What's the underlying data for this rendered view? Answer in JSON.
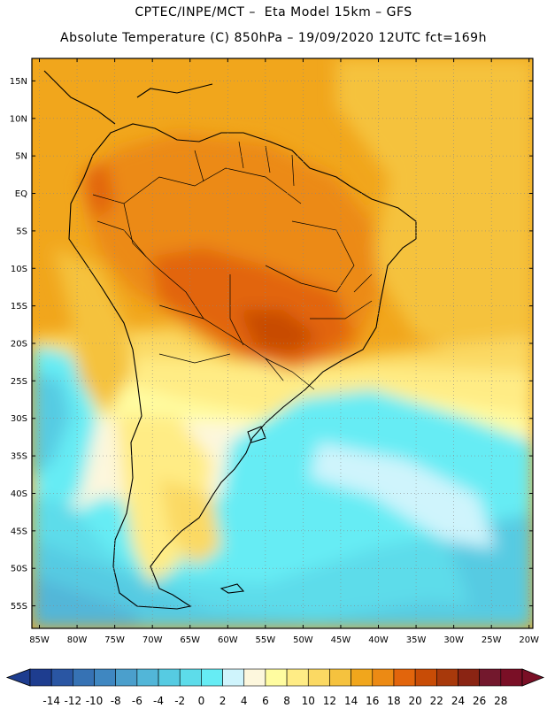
{
  "header": {
    "line1": "CPTEC/INPE/MCT –  Eta Model 15km – GFS",
    "line2": "Absolute Temperature (C) 850hPa – 19/09/2020 12UTC fct=169h"
  },
  "map": {
    "lat_range": [
      -58,
      18
    ],
    "lon_range": [
      -86,
      -19.5
    ],
    "lat_labels": [
      "15N",
      "10N",
      "5N",
      "EQ",
      "5S",
      "10S",
      "15S",
      "20S",
      "25S",
      "30S",
      "35S",
      "40S",
      "45S",
      "50S",
      "55S"
    ],
    "lon_labels": [
      "85W",
      "80W",
      "75W",
      "70W",
      "65W",
      "60W",
      "55W",
      "50W",
      "45W",
      "40W",
      "35W",
      "30W",
      "25W",
      "20W"
    ],
    "gridlines": true
  },
  "colorbar": {
    "labels": [
      "-14",
      "-12",
      "-10",
      "-8",
      "-6",
      "-4",
      "-2",
      "0",
      "2",
      "4",
      "6",
      "8",
      "10",
      "12",
      "14",
      "16",
      "18",
      "20",
      "22",
      "24",
      "26",
      "28"
    ],
    "colors": [
      "#1e3d8f",
      "#2a56a3",
      "#3672b4",
      "#3f87c1",
      "#4b9fcc",
      "#52b6d8",
      "#56cbe2",
      "#5ddcea",
      "#66ecf4",
      "#cff4fc",
      "#fdf7dd",
      "#fffca0",
      "#ffec85",
      "#fbd963",
      "#f5c23e",
      "#f1a61c",
      "#ec8a14",
      "#e2650c",
      "#c84c06",
      "#a8390b",
      "#8a2413",
      "#73182d",
      "#7a0f26"
    ],
    "under_color": "#1e3d8f",
    "over_color": "#7a0f26"
  }
}
